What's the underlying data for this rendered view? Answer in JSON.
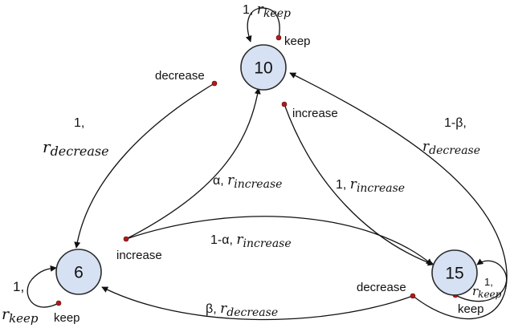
{
  "states": {
    "s10": "10",
    "s6": "6",
    "s15": "15"
  },
  "actions": {
    "keep": "keep",
    "decrease": "decrease",
    "increase": "increase"
  },
  "edge_labels": {
    "loop10_prob": "1, ",
    "loop10_r": "r",
    "loop10_sub": "keep",
    "d10to6_prob": "1,",
    "d10to6_r": "r",
    "d10to6_sub": "decrease",
    "i6to10_prob": "α, ",
    "i6to10_r": "r",
    "i6to10_sub": "increase",
    "i10to15_prob": "1, ",
    "i10to15_r": "r",
    "i10to15_sub": "increase",
    "i6to15_prob": "1-α, ",
    "i6to15_r": "r",
    "i6to15_sub": "increase",
    "d15to10_prob": "1-β,",
    "d15to10_r": "r",
    "d15to10_sub": "decrease",
    "d15to6_prob": "β, ",
    "d15to6_r": "r",
    "d15to6_sub": "decrease",
    "loop6_prob": "1,",
    "loop6_r": "r",
    "loop6_sub": "keep",
    "loop15_prob": "1,",
    "loop15_r": "r",
    "loop15_sub": "keep"
  },
  "colors": {
    "state_fill": "#d6e1f3",
    "action_dot": "#b11a1a"
  }
}
